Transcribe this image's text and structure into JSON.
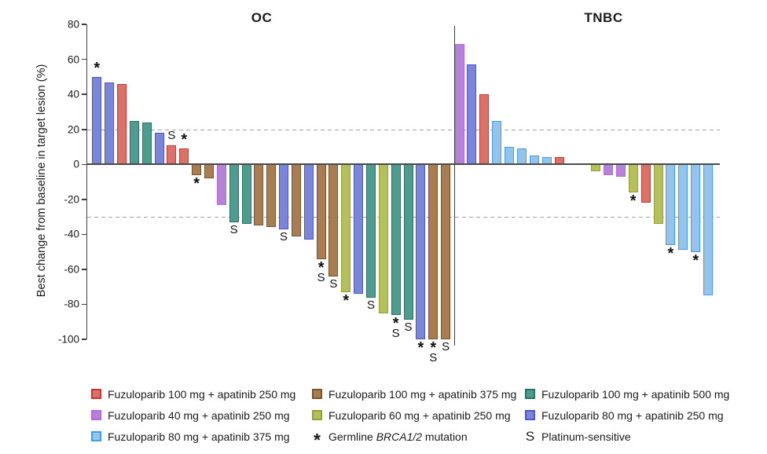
{
  "panel_titles": {
    "oc": "OC",
    "tnbc": "TNBC"
  },
  "palette": {
    "f100a250": {
      "fill": "#DC7168",
      "border": "#C23935"
    },
    "f40a250": {
      "fill": "#B383D6",
      "border": "#BE64EC"
    },
    "f80a375": {
      "fill": "#94C4EC",
      "border": "#419EEC"
    },
    "f100a375": {
      "fill": "#A97D52",
      "border": "#7D5226"
    },
    "f60a250": {
      "fill": "#B5BF5E",
      "border": "#93A32C"
    },
    "f100a500": {
      "fill": "#4E9C8D",
      "border": "#2A7262"
    },
    "f80a250": {
      "fill": "#7A86D8",
      "border": "#5154CC"
    }
  },
  "chart_data": {
    "type": "bar",
    "title": "",
    "ylabel": "Best change from baseline in target lesion (%)",
    "ylim": [
      -100,
      80
    ],
    "yticks": [
      80,
      60,
      40,
      20,
      0,
      -20,
      -40,
      -60,
      -80,
      -100
    ],
    "reference_lines": [
      20,
      -30
    ],
    "grid": false,
    "legend_position": "bottom",
    "groups": [
      {
        "label": "OC",
        "bars": [
          {
            "value": 50,
            "dose": "f80a250",
            "markers": [
              "*"
            ]
          },
          {
            "value": 47,
            "dose": "f80a250",
            "markers": []
          },
          {
            "value": 46,
            "dose": "f100a250",
            "markers": []
          },
          {
            "value": 25,
            "dose": "f100a500",
            "markers": []
          },
          {
            "value": 24,
            "dose": "f100a500",
            "markers": []
          },
          {
            "value": 18,
            "dose": "f80a250",
            "markers": []
          },
          {
            "value": 11,
            "dose": "f100a250",
            "markers": [
              "S"
            ]
          },
          {
            "value": 9,
            "dose": "f100a250",
            "markers": [
              "*"
            ]
          },
          {
            "value": -6,
            "dose": "f100a375",
            "markers": [
              "*"
            ]
          },
          {
            "value": -8,
            "dose": "f100a375",
            "markers": []
          },
          {
            "value": -23,
            "dose": "f40a250",
            "markers": []
          },
          {
            "value": -33,
            "dose": "f100a500",
            "markers": [
              "S"
            ]
          },
          {
            "value": -34,
            "dose": "f100a500",
            "markers": []
          },
          {
            "value": -35,
            "dose": "f100a375",
            "markers": []
          },
          {
            "value": -36,
            "dose": "f100a375",
            "markers": []
          },
          {
            "value": -37,
            "dose": "f80a250",
            "markers": [
              "S"
            ]
          },
          {
            "value": -41,
            "dose": "f100a375",
            "markers": []
          },
          {
            "value": -43,
            "dose": "f80a250",
            "markers": []
          },
          {
            "value": -54,
            "dose": "f100a375",
            "markers": [
              "*",
              "S"
            ]
          },
          {
            "value": -64,
            "dose": "f100a375",
            "markers": [
              "S"
            ]
          },
          {
            "value": -73,
            "dose": "f60a250",
            "markers": [
              "*"
            ]
          },
          {
            "value": -74,
            "dose": "f80a250",
            "markers": []
          },
          {
            "value": -76,
            "dose": "f100a500",
            "markers": [
              "S"
            ]
          },
          {
            "value": -85,
            "dose": "f60a250",
            "markers": []
          },
          {
            "value": -86,
            "dose": "f100a500",
            "markers": [
              "*",
              "S"
            ]
          },
          {
            "value": -89,
            "dose": "f100a500",
            "markers": [
              "S"
            ]
          },
          {
            "value": -100,
            "dose": "f80a250",
            "markers": [
              "*"
            ]
          },
          {
            "value": -100,
            "dose": "f100a375",
            "markers": [
              "*",
              "S"
            ]
          },
          {
            "value": -100,
            "dose": "f100a375",
            "markers": [
              "S"
            ]
          }
        ]
      },
      {
        "label": "TNBC",
        "bars": [
          {
            "value": 69,
            "dose": "f40a250",
            "markers": []
          },
          {
            "value": 57,
            "dose": "f80a250",
            "markers": []
          },
          {
            "value": 40,
            "dose": "f100a250",
            "markers": []
          },
          {
            "value": 25,
            "dose": "f80a375",
            "markers": []
          },
          {
            "value": 10,
            "dose": "f80a375",
            "markers": []
          },
          {
            "value": 9,
            "dose": "f80a375",
            "markers": []
          },
          {
            "value": 5,
            "dose": "f80a375",
            "markers": []
          },
          {
            "value": 4,
            "dose": "f80a375",
            "markers": []
          },
          {
            "value": 4,
            "dose": "f100a250",
            "markers": []
          },
          {
            "value": -4,
            "dose": "f60a250",
            "markers": [],
            "gap_before": true
          },
          {
            "value": -6,
            "dose": "f40a250",
            "markers": []
          },
          {
            "value": -7,
            "dose": "f40a250",
            "markers": []
          },
          {
            "value": -16,
            "dose": "f60a250",
            "markers": [
              "*"
            ]
          },
          {
            "value": -22,
            "dose": "f100a250",
            "markers": []
          },
          {
            "value": -34,
            "dose": "f60a250",
            "markers": []
          },
          {
            "value": -46,
            "dose": "f80a375",
            "markers": [
              "*"
            ]
          },
          {
            "value": -49,
            "dose": "f80a375",
            "markers": []
          },
          {
            "value": -50,
            "dose": "f80a375",
            "markers": [
              "*"
            ]
          },
          {
            "value": -75,
            "dose": "f80a375",
            "markers": []
          }
        ]
      }
    ]
  },
  "legend": {
    "columns": [
      {
        "items": [
          {
            "type": "swatch",
            "dose": "f100a250",
            "label": "Fuzuloparib 100 mg + apatinib 250 mg"
          },
          {
            "type": "swatch",
            "dose": "f40a250",
            "label": "Fuzuloparib 40 mg + apatinib 250 mg"
          },
          {
            "type": "swatch",
            "dose": "f80a375",
            "label": "Fuzuloparib 80 mg + apatinib 375 mg"
          }
        ]
      },
      {
        "items": [
          {
            "type": "swatch",
            "dose": "f100a375",
            "label": "Fuzuloparib 100 mg + apatinib 375 mg"
          },
          {
            "type": "swatch",
            "dose": "f60a250",
            "label": "Fuzuloparib 60 mg + apatinib 250 mg"
          },
          {
            "type": "marker",
            "symbol": "*",
            "label_prefix": "Germline ",
            "label_italic": "BRCA1/2",
            "label_suffix": " mutation"
          }
        ]
      },
      {
        "items": [
          {
            "type": "swatch",
            "dose": "f100a500",
            "label": "Fuzuloparib 100 mg + apatinib 500 mg"
          },
          {
            "type": "swatch",
            "dose": "f80a250",
            "label": "Fuzuloparib 80 mg + apatinib 250 mg"
          },
          {
            "type": "marker",
            "symbol": "S",
            "label": "Platinum-sensitive"
          }
        ]
      }
    ]
  }
}
